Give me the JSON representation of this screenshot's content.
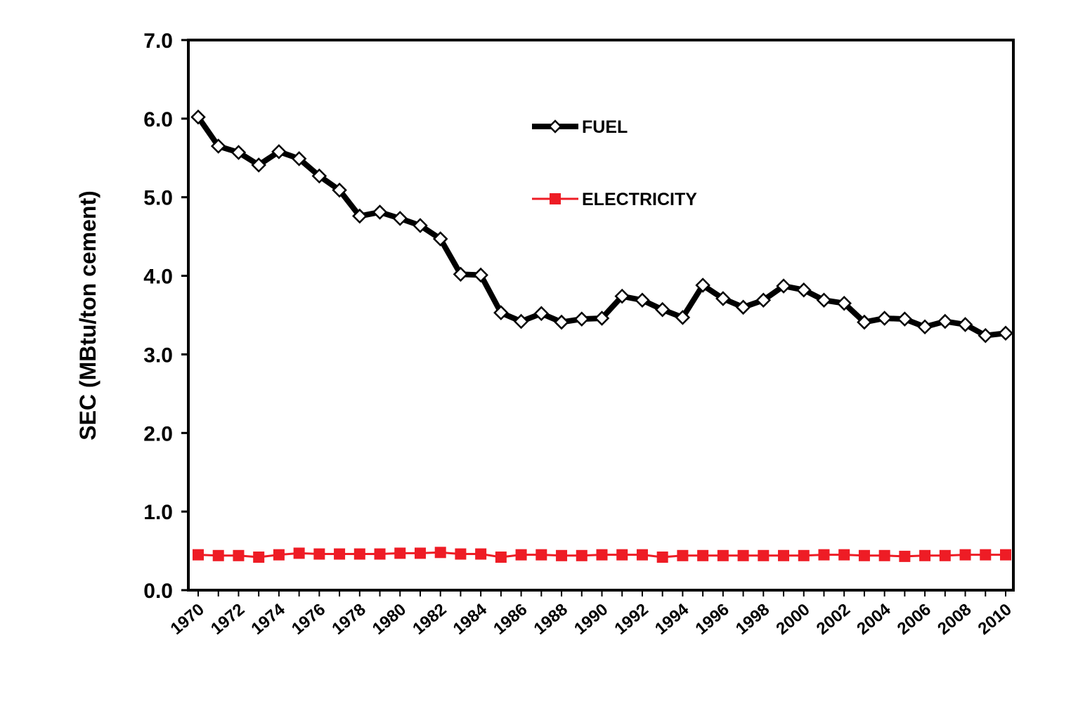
{
  "chart_data": {
    "type": "line",
    "title": "",
    "xlabel": "",
    "ylabel": "SEC (MBtu/ton cement)",
    "ylim": [
      0,
      7
    ],
    "yticks": [
      "0.0",
      "1.0",
      "2.0",
      "3.0",
      "4.0",
      "5.0",
      "6.0",
      "7.0"
    ],
    "xticks": [
      "1970",
      "1972",
      "1974",
      "1976",
      "1978",
      "1980",
      "1982",
      "1984",
      "1986",
      "1988",
      "1990",
      "1992",
      "1994",
      "1996",
      "1998",
      "2000",
      "2002",
      "2004",
      "2006",
      "2008",
      "2010"
    ],
    "x": [
      1970,
      1971,
      1972,
      1973,
      1974,
      1975,
      1976,
      1977,
      1978,
      1979,
      1980,
      1981,
      1982,
      1983,
      1984,
      1985,
      1986,
      1987,
      1988,
      1989,
      1990,
      1991,
      1992,
      1993,
      1994,
      1995,
      1996,
      1997,
      1998,
      1999,
      2000,
      2001,
      2002,
      2003,
      2004,
      2005,
      2006,
      2007,
      2008,
      2009,
      2010
    ],
    "grid": false,
    "legend_position": "top-center",
    "series": [
      {
        "name": "FUEL",
        "color": "#000000",
        "marker": "diamond-open",
        "values": [
          6.02,
          5.65,
          5.57,
          5.41,
          5.58,
          5.49,
          5.27,
          5.09,
          4.76,
          4.81,
          4.73,
          4.64,
          4.47,
          4.02,
          4.01,
          3.53,
          3.42,
          3.52,
          3.41,
          3.45,
          3.46,
          3.74,
          3.69,
          3.57,
          3.47,
          3.88,
          3.71,
          3.6,
          3.69,
          3.87,
          3.82,
          3.69,
          3.65,
          3.41,
          3.46,
          3.45,
          3.35,
          3.42,
          3.38,
          3.24,
          3.27
        ]
      },
      {
        "name": "ELECTRICITY",
        "color": "#ee1c25",
        "marker": "square-filled",
        "values": [
          0.45,
          0.44,
          0.44,
          0.42,
          0.45,
          0.47,
          0.46,
          0.46,
          0.46,
          0.46,
          0.47,
          0.47,
          0.48,
          0.46,
          0.46,
          0.42,
          0.45,
          0.45,
          0.44,
          0.44,
          0.45,
          0.45,
          0.45,
          0.42,
          0.44,
          0.44,
          0.44,
          0.44,
          0.44,
          0.44,
          0.44,
          0.45,
          0.45,
          0.44,
          0.44,
          0.43,
          0.44,
          0.44,
          0.45,
          0.45,
          0.45
        ]
      }
    ]
  }
}
